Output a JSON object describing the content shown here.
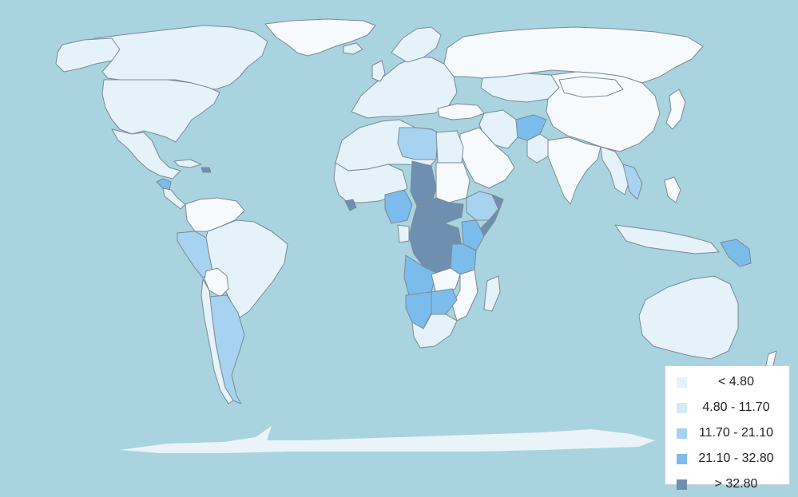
{
  "map": {
    "colors": {
      "ocean": "#a9d3de",
      "no_data": "#f7fafc",
      "bin0": "#e5f2fa",
      "bin1": "#d4eaf7",
      "bin2": "#a8d3f0",
      "bin3": "#7bbcec",
      "bin4": "#6f8fb0",
      "antarctica": "#eaf4f8"
    },
    "legend": {
      "items": [
        {
          "label": "< 4.80",
          "color": "#e5f2fa"
        },
        {
          "label": "4.80 - 11.70",
          "color": "#d4eaf7"
        },
        {
          "label": "11.70 - 21.10",
          "color": "#a8d3f0"
        },
        {
          "label": "21.10 - 32.80",
          "color": "#7bbcec"
        },
        {
          "label": "> 32.80",
          "color": "#6f8fb0"
        }
      ]
    }
  }
}
